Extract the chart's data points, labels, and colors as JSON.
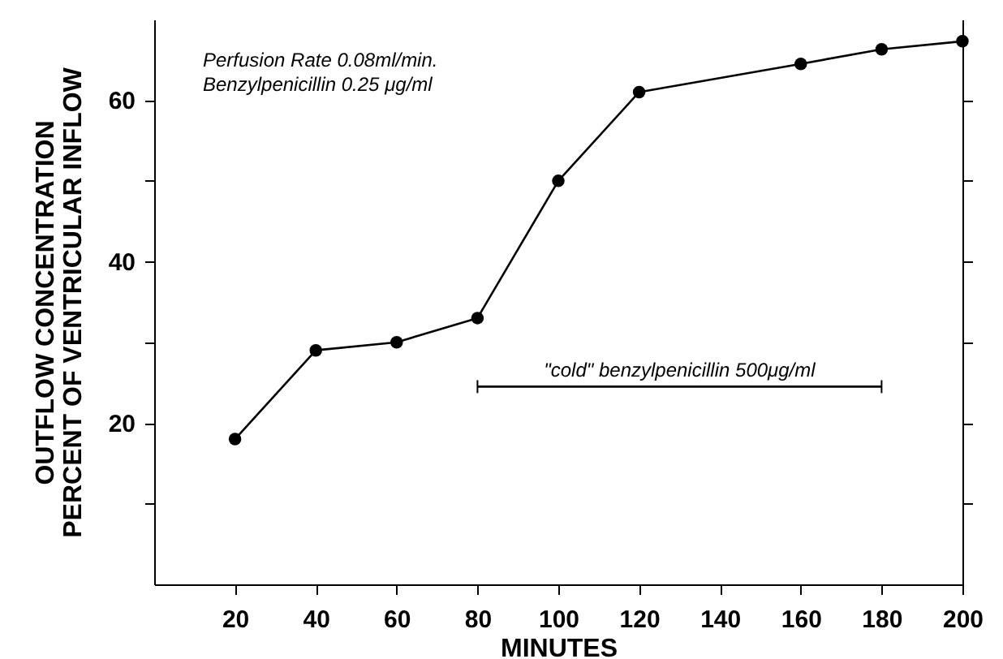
{
  "chart_data": {
    "type": "line",
    "xlabel": "MINUTES",
    "ylabel": "OUTFLOW CONCENTRATION\nPERCENT OF VENTRICULAR INFLOW",
    "x": [
      20,
      40,
      60,
      80,
      100,
      120,
      160,
      180,
      200
    ],
    "series": [
      {
        "color": "#000000",
        "values": [
          18,
          29,
          30,
          33,
          50,
          61,
          64.5,
          66.3,
          67.3
        ]
      },
      {
        "color": "#000000",
        "marker": "none",
        "x": [
          80,
          180
        ],
        "values": [
          24.5,
          24.5
        ],
        "errors": [
          0.8,
          0.8
        ]
      }
    ],
    "xlim": [
      0,
      200
    ],
    "xticks": [
      20,
      40,
      60,
      80,
      100,
      120,
      140,
      160,
      180,
      200
    ],
    "ylim": [
      0,
      70
    ],
    "yticks": [
      {
        "value": 10,
        "label": null
      },
      20,
      {
        "value": 30,
        "label": null
      },
      40,
      {
        "value": 50,
        "label": null
      },
      60
    ],
    "marker": "circle",
    "line_style": "solid",
    "grid": false,
    "annotations": [
      "Perfusion Rate 0.08ml/min.",
      "Benzylpenicillin 0.25 μg/ml",
      {
        "text": "\"cold\" benzylpenicillin 500μg/ml",
        "x": 130,
        "y": 24.5
      }
    ]
  }
}
